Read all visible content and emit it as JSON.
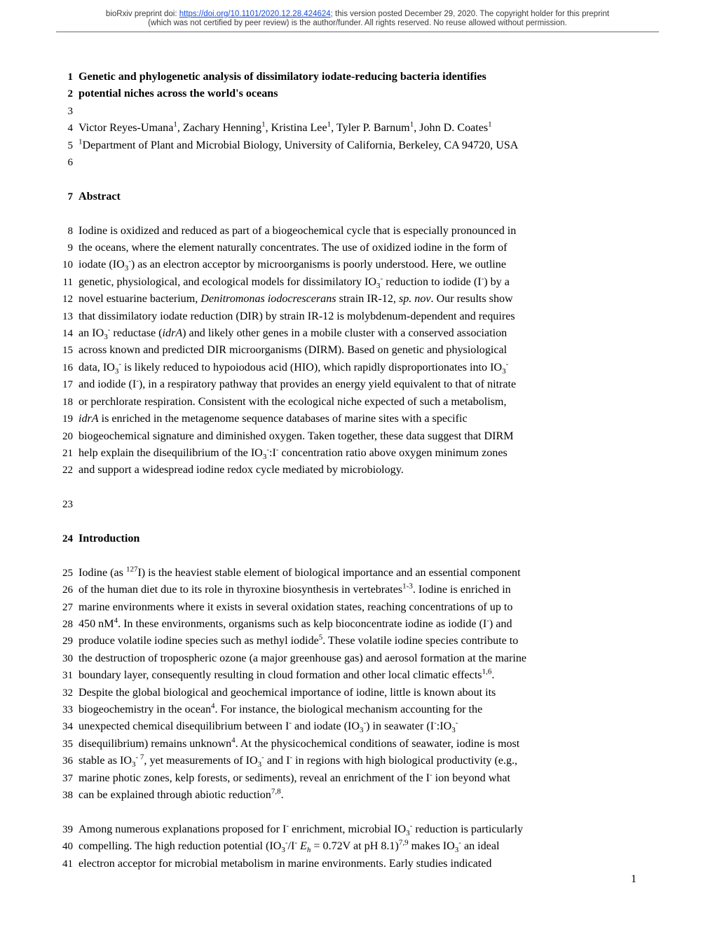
{
  "header": {
    "line1_pre": "bioRxiv preprint doi: ",
    "doi_url": "https://doi.org/10.1101/2020.12.28.424624",
    "line1_post": "; this version posted December 29, 2020. The copyright holder for this preprint",
    "line2": "(which was not certified by peer review) is the author/funder. All rights reserved. No reuse allowed without permission."
  },
  "lines": {
    "l1": "Genetic and phylogenetic analysis of dissimilatory iodate-reducing bacteria identifies",
    "l2": "potential niches across the world's oceans",
    "l4_a": "Victor Reyes-Umana",
    "l4_b": ", Zachary Henning",
    "l4_c": ", Kristina Lee",
    "l4_d": ", Tyler P. Barnum",
    "l4_e": ", John D. Coates",
    "l5": "Department of Plant and Microbial Biology, University of California, Berkeley, CA 94720, USA",
    "l7": "Abstract",
    "l8": "Iodine is oxidized and reduced as part of a biogeochemical cycle that is especially pronounced in",
    "l9": "the oceans, where the element naturally concentrates. The use of oxidized iodine in the form of",
    "l10_a": "iodate (IO",
    "l10_b": ") as an electron acceptor by microorganisms is poorly understood. Here, we outline",
    "l11_a": "genetic, physiological, and ecological models for dissimilatory IO",
    "l11_b": " reduction to iodide (I",
    "l11_c": ") by a",
    "l12_a": "novel estuarine bacterium, ",
    "l12_b": "Denitromonas iodocrescerans",
    "l12_c": " strain IR-12, ",
    "l12_d": "sp. nov",
    "l12_e": ".  Our results show",
    "l13": "that dissimilatory iodate reduction (DIR) by strain IR-12 is  molybdenum-dependent and requires",
    "l14_a": "an IO",
    "l14_b": " reductase (",
    "l14_c": "idrA",
    "l14_d": ") and likely other genes in a mobile cluster with a conserved association",
    "l15": "across known and predicted DIR microorganisms (DIRM). Based on genetic and physiological",
    "l16_a": "data, IO",
    "l16_b": " is likely reduced to hypoiodous acid (HIO), which rapidly disproportionates into IO",
    "l17_a": "and iodide (I",
    "l17_b": "), in a respiratory pathway that provides an energy yield equivalent to that of nitrate",
    "l18": "or perchlorate respiration. Consistent with the ecological niche expected of such a metabolism,",
    "l19_a": "idrA",
    "l19_b": " is enriched in the metagenome sequence databases of marine sites with a specific",
    "l20": "biogeochemical signature and diminished oxygen.  Taken together, these data suggest that DIRM",
    "l21_a": "help explain the disequilibrium of the IO",
    "l21_b": ":I",
    "l21_c": " concentration ratio above oxygen minimum zones",
    "l22": "and support a widespread iodine redox cycle mediated by microbiology.",
    "l24": "Introduction",
    "l25_a": "Iodine (as ",
    "l25_b": "I) is the heaviest stable element of biological importance and an essential component",
    "l26_a": "of the human diet due to its role in thyroxine biosynthesis in vertebrates",
    "l26_b": ". Iodine is enriched in",
    "l27": "marine environments where it exists in several oxidation states, reaching concentrations of up to",
    "l28_a": "450 nM",
    "l28_b": ". In these environments, organisms such as kelp bioconcentrate iodine as iodide (I",
    "l28_c": ") and",
    "l29_a": "produce volatile iodine species such as methyl iodide",
    "l29_b": ". These volatile iodine species contribute to",
    "l30": "the destruction of tropospheric ozone (a major greenhouse gas) and aerosol formation at the marine",
    "l31_a": "boundary layer, consequently resulting in cloud formation and other local climatic effects",
    "l32": "Despite the global biological and geochemical importance of iodine, little is known about its",
    "l33_a": "biogeochemistry in the ocean",
    "l33_b": ". For instance, the biological mechanism accounting for the",
    "l34_a": "unexpected chemical disequilibrium between I",
    "l34_b": " and iodate (IO",
    "l34_c": ") in seawater (I",
    "l34_d": ":IO",
    "l35_a": "disequilibrium) remains unknown",
    "l35_b": ". At the physicochemical conditions of seawater, iodine is most",
    "l36_a": "stable as IO",
    "l36_b": ", yet measurements of IO",
    "l36_c": " and I",
    "l36_d": " in regions with high biological productivity (e.g.,",
    "l37_a": "marine photic zones, kelp forests, or sediments), reveal an enrichment of the I",
    "l37_b": " ion beyond what",
    "l38_a": "can be explained through abiotic reduction",
    "l38_b": ".",
    "l39_a": "Among numerous explanations proposed for I",
    "l39_b": " enrichment, microbial IO",
    "l39_c": " reduction is particularly",
    "l40_a": "compelling. The high reduction potential (IO",
    "l40_b": "/I",
    "l40_c": " = 0.72V at pH 8.1)",
    "l40_d": " makes IO",
    "l40_e": " an ideal",
    "l41": "electron acceptor for microbial metabolism in marine environments. Early studies indicated"
  },
  "sup": {
    "one": "1",
    "onethree": "1-3",
    "four": "4",
    "five": "5",
    "onesix": "1,6",
    "seven": "7",
    "seveneight": "7,8",
    "sevennine": "7,9",
    "minus": "-",
    "minus7": "- 7",
    "iso127": "127"
  },
  "sub": {
    "three": "3",
    "threeminus": "3-",
    "h": "h"
  },
  "math": {
    "Eh": "E"
  },
  "pagenum": "1",
  "colors": {
    "text": "#000000",
    "link": "#1a4fd6",
    "header_text": "#3a3a3a",
    "rule": "#6a6a6a",
    "bg": "#ffffff"
  },
  "fontsizes": {
    "body": 16.1,
    "header": 11.5,
    "lineheight": 24.4,
    "sup": 11,
    "sub": 11
  }
}
